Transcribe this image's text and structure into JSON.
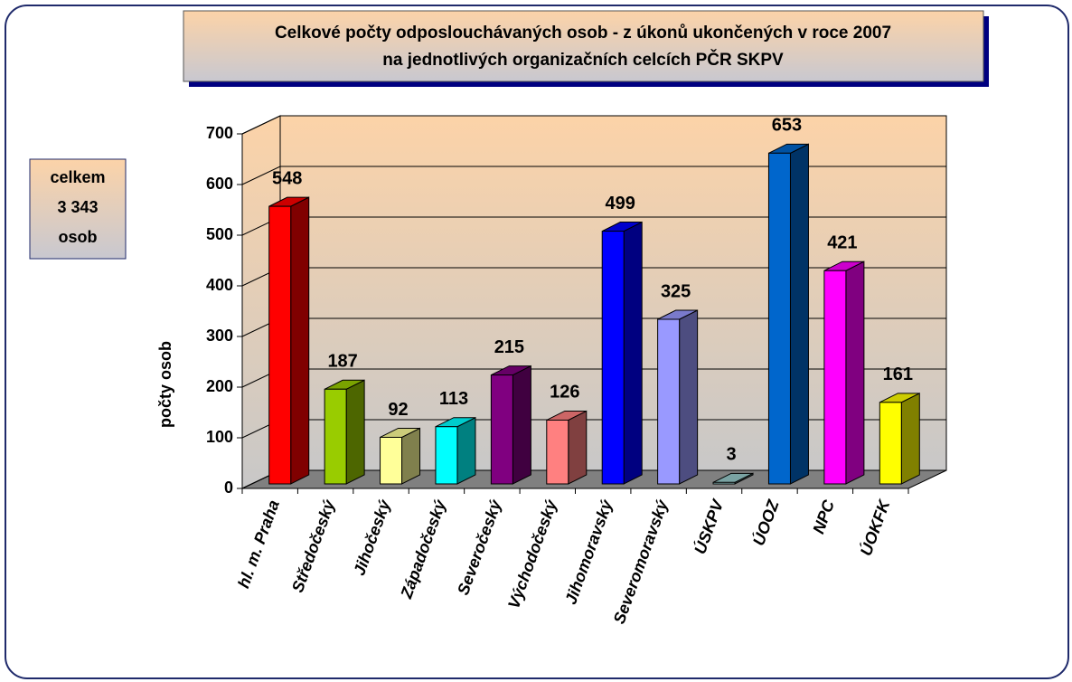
{
  "chart_data": {
    "type": "bar3d",
    "title": [
      "Celkové počty odposlouchávaných osob - z úkonů ukončených v roce 2007",
      "na jednotlivých organizačních celcích PČR SKPV"
    ],
    "total_box": [
      "celkem",
      "3 343",
      "osob"
    ],
    "y_label": "počty osob",
    "categories": [
      "hl. m. Praha",
      "Středočeský",
      "Jihočeský",
      "Západočeský",
      "Severočeský",
      "Východočeský",
      "Jihomoravský",
      "Severomoravský",
      "ÚSKPV",
      "ÚOOZ",
      "NPC",
      "ÚOKFK"
    ],
    "values": [
      548,
      187,
      92,
      113,
      215,
      126,
      499,
      325,
      3,
      653,
      421,
      161
    ],
    "colors": [
      "#ff0000",
      "#99cc00",
      "#ffff99",
      "#00ffff",
      "#800080",
      "#ff8080",
      "#0000ff",
      "#9999ff",
      "#99cccc",
      "#0066cc",
      "#ff00ff",
      "#ffff00"
    ],
    "ylim": [
      0,
      700
    ],
    "yticks": [
      0,
      100,
      200,
      300,
      400,
      500,
      600,
      700
    ],
    "grid": true
  }
}
